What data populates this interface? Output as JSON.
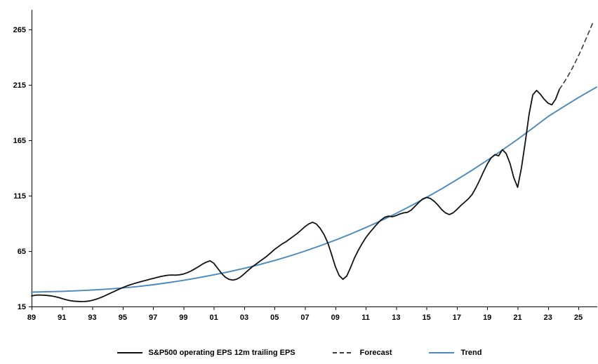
{
  "chart": {
    "background": "#ffffff",
    "axis_color": "#000000"
  },
  "chart_data": {
    "type": "line",
    "title": "",
    "legend_position": "bottom",
    "grid": false,
    "x_axis": {
      "min": 1989,
      "max": 2026.2,
      "ticks": [
        1989,
        1991,
        1993,
        1995,
        1997,
        1999,
        2001,
        2003,
        2005,
        2007,
        2009,
        2011,
        2013,
        2015,
        2017,
        2019,
        2021,
        2023,
        2025
      ],
      "tick_labels": [
        "89",
        "91",
        "93",
        "95",
        "97",
        "99",
        "01",
        "03",
        "05",
        "07",
        "09",
        "11",
        "13",
        "15",
        "17",
        "19",
        "21",
        "23",
        "25"
      ]
    },
    "y_axis": {
      "min": 15,
      "max": 265,
      "ticks": [
        15,
        65,
        115,
        165,
        215,
        265
      ]
    },
    "series": [
      {
        "id": "eps",
        "name": "S&P500 operating EPS 12m trailing EPS",
        "color": "#111111",
        "style": "solid",
        "width": 1.8,
        "start": 1989.0,
        "step": 0.25,
        "values": [
          24.5,
          25.2,
          25.4,
          25.2,
          25.0,
          24.6,
          24.0,
          23.2,
          22.2,
          21.2,
          20.4,
          19.9,
          19.6,
          19.4,
          19.5,
          19.9,
          20.6,
          21.6,
          22.8,
          24.2,
          25.8,
          27.4,
          29.0,
          30.6,
          32.0,
          33.4,
          34.6,
          35.7,
          36.7,
          37.6,
          38.5,
          39.4,
          40.3,
          41.2,
          42.0,
          42.7,
          43.2,
          43.4,
          43.3,
          43.6,
          44.3,
          45.5,
          47.1,
          49.0,
          51.0,
          53.2,
          55.0,
          56.2,
          54.0,
          49.5,
          45.0,
          41.5,
          39.5,
          38.8,
          39.6,
          41.5,
          44.5,
          47.5,
          50.5,
          53.0,
          55.5,
          58.0,
          60.5,
          63.5,
          66.5,
          69.0,
          71.5,
          73.5,
          76.0,
          78.5,
          81.0,
          84.0,
          87.0,
          89.5,
          91.0,
          89.5,
          85.5,
          80.0,
          72.5,
          62.0,
          51.0,
          43.0,
          39.5,
          42.5,
          50.0,
          58.5,
          65.5,
          71.5,
          77.0,
          81.5,
          85.5,
          89.5,
          93.0,
          95.5,
          96.5,
          96.0,
          97.0,
          98.5,
          99.5,
          100.0,
          102.0,
          105.5,
          109.0,
          112.0,
          113.5,
          112.5,
          110.0,
          106.5,
          102.5,
          99.5,
          98.0,
          99.5,
          102.5,
          106.0,
          109.0,
          112.0,
          116.0,
          122.0,
          129.0,
          136.5,
          143.5,
          149.0,
          152.0,
          151.0,
          156.5,
          153.0,
          144.0,
          131.0,
          122.5,
          140.0,
          163.0,
          188.0,
          206.0,
          210.0,
          206.5,
          202.0,
          198.5,
          197.0,
          202.0,
          211.0
        ]
      },
      {
        "id": "forecast",
        "name": "Forecast",
        "color": "#3a3a3a",
        "style": "dashed",
        "width": 1.6,
        "points": [
          [
            2023.75,
            211
          ],
          [
            2024.0,
            216
          ],
          [
            2024.25,
            221.5
          ],
          [
            2024.5,
            227.5
          ],
          [
            2024.75,
            234
          ],
          [
            2025.0,
            241
          ],
          [
            2025.25,
            248.5
          ],
          [
            2025.5,
            256.5
          ],
          [
            2025.75,
            264.5
          ],
          [
            2025.95,
            271
          ]
        ]
      },
      {
        "id": "trend",
        "name": "Trend",
        "color": "#4a89bd",
        "style": "solid",
        "width": 1.9,
        "points": [
          [
            1989,
            28.0
          ],
          [
            1990,
            28.3
          ],
          [
            1991,
            28.7
          ],
          [
            1992,
            29.2
          ],
          [
            1993,
            29.9
          ],
          [
            1994,
            30.7
          ],
          [
            1995,
            31.7
          ],
          [
            1996,
            33.0
          ],
          [
            1997,
            34.6
          ],
          [
            1998,
            36.5
          ],
          [
            1999,
            38.6
          ],
          [
            2000,
            41.0
          ],
          [
            2001,
            43.6
          ],
          [
            2002,
            46.4
          ],
          [
            2003,
            49.4
          ],
          [
            2004,
            52.8
          ],
          [
            2005,
            56.5
          ],
          [
            2006,
            60.6
          ],
          [
            2007,
            65.0
          ],
          [
            2008,
            69.8
          ],
          [
            2009,
            74.9
          ],
          [
            2010,
            80.4
          ],
          [
            2011,
            86.2
          ],
          [
            2012,
            92.4
          ],
          [
            2013,
            99.0
          ],
          [
            2014,
            106.0
          ],
          [
            2015,
            113.4
          ],
          [
            2016,
            121.2
          ],
          [
            2017,
            129.4
          ],
          [
            2018,
            138.0
          ],
          [
            2019,
            146.9
          ],
          [
            2020,
            156.2
          ],
          [
            2021,
            165.9
          ],
          [
            2022,
            176.0
          ],
          [
            2023,
            186.4
          ],
          [
            2024,
            195.0
          ],
          [
            2025,
            203.5
          ],
          [
            2026.2,
            213.0
          ]
        ]
      }
    ]
  }
}
